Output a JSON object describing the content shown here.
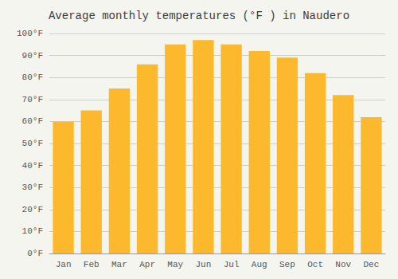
{
  "chart_data": {
    "type": "bar",
    "title": "Average monthly temperatures (°F ) in Naudero",
    "categories": [
      "Jan",
      "Feb",
      "Mar",
      "Apr",
      "May",
      "Jun",
      "Jul",
      "Aug",
      "Sep",
      "Oct",
      "Nov",
      "Dec"
    ],
    "values": [
      60,
      65,
      75,
      86,
      95,
      97,
      95,
      92,
      89,
      82,
      72,
      62
    ],
    "color": "#FDB92E",
    "ylim": [
      0,
      100
    ],
    "yticks": [
      {
        "value": 0,
        "label": "0°F"
      },
      {
        "value": 10,
        "label": "10°F"
      },
      {
        "value": 20,
        "label": "20°F"
      },
      {
        "value": 30,
        "label": "30°F"
      },
      {
        "value": 40,
        "label": "40°F"
      },
      {
        "value": 50,
        "label": "50°F"
      },
      {
        "value": 60,
        "label": "60°F"
      },
      {
        "value": 70,
        "label": "70°F"
      },
      {
        "value": 80,
        "label": "80°F"
      },
      {
        "value": 90,
        "label": "90°F"
      },
      {
        "value": 100,
        "label": "100°F"
      }
    ],
    "grid": true
  }
}
